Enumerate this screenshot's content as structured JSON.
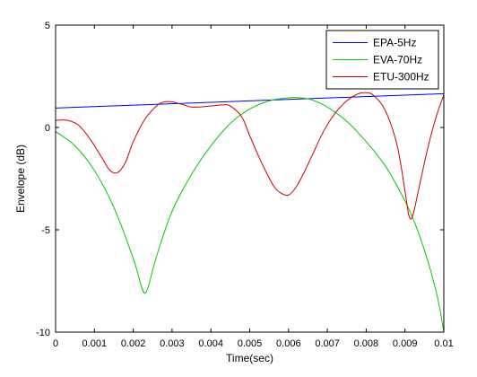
{
  "chart_data": {
    "type": "line",
    "title": "",
    "xlabel": "Time(sec)",
    "ylabel": "Envelope (dB)",
    "xlim": [
      0,
      0.01
    ],
    "ylim": [
      -10,
      5
    ],
    "xticks": [
      0,
      0.001,
      0.002,
      0.003,
      0.004,
      0.005,
      0.006,
      0.007,
      0.008,
      0.009,
      0.01
    ],
    "xtick_labels": [
      "0",
      "0.001",
      "0.002",
      "0.003",
      "0.004",
      "0.005",
      "0.006",
      "0.007",
      "0.008",
      "0.009",
      "0.01"
    ],
    "yticks": [
      5,
      0,
      -5,
      -10
    ],
    "ytick_labels": [
      "5",
      "0",
      "-5",
      "-10"
    ],
    "grid": false,
    "legend_position": "top-right",
    "series": [
      {
        "name": "EPA-5Hz",
        "color": "#0000ff",
        "x": [
          0,
          0.01
        ],
        "y": [
          0.95,
          1.65
        ]
      },
      {
        "name": "EVA-70Hz",
        "color": "#00cc00",
        "x": [
          0,
          0.0005,
          0.001,
          0.0015,
          0.002,
          0.0022,
          0.0023,
          0.0024,
          0.0026,
          0.003,
          0.0035,
          0.004,
          0.0045,
          0.005,
          0.0055,
          0.006,
          0.0063,
          0.0066,
          0.007,
          0.0075,
          0.008,
          0.0085,
          0.009,
          0.0093,
          0.0096,
          0.0098,
          0.0099,
          0.01
        ],
        "y": [
          -0.2,
          -0.9,
          -2.1,
          -3.9,
          -6.4,
          -7.7,
          -8.1,
          -7.7,
          -6.3,
          -4.1,
          -2.3,
          -0.9,
          0.2,
          0.9,
          1.3,
          1.45,
          1.45,
          1.35,
          1.0,
          0.3,
          -0.7,
          -1.9,
          -3.6,
          -4.9,
          -6.6,
          -8.0,
          -8.9,
          -10.0
        ]
      },
      {
        "name": "ETU-300Hz",
        "color": "#cc0000",
        "x": [
          0,
          0.0003,
          0.0006,
          0.0009,
          0.0012,
          0.0014,
          0.0016,
          0.0018,
          0.002,
          0.0023,
          0.0026,
          0.0028,
          0.003,
          0.0033,
          0.0035,
          0.0037,
          0.004,
          0.0043,
          0.0045,
          0.0048,
          0.005,
          0.0053,
          0.0056,
          0.0058,
          0.006,
          0.0062,
          0.0064,
          0.0066,
          0.0069,
          0.0072,
          0.0075,
          0.0078,
          0.008,
          0.0082,
          0.0085,
          0.0088,
          0.009,
          0.0091,
          0.0092,
          0.0094,
          0.0096,
          0.0098,
          0.01
        ],
        "y": [
          0.35,
          0.35,
          0.1,
          -0.6,
          -1.5,
          -2.1,
          -2.2,
          -1.7,
          -0.7,
          0.4,
          1.05,
          1.25,
          1.25,
          1.1,
          1.0,
          1.0,
          1.05,
          1.1,
          1.05,
          0.5,
          -0.4,
          -1.7,
          -2.8,
          -3.2,
          -3.3,
          -2.9,
          -2.2,
          -1.4,
          -0.2,
          0.7,
          1.3,
          1.65,
          1.7,
          1.55,
          0.8,
          -0.9,
          -3.1,
          -4.3,
          -4.3,
          -2.6,
          -0.9,
          0.5,
          1.6
        ]
      }
    ]
  }
}
